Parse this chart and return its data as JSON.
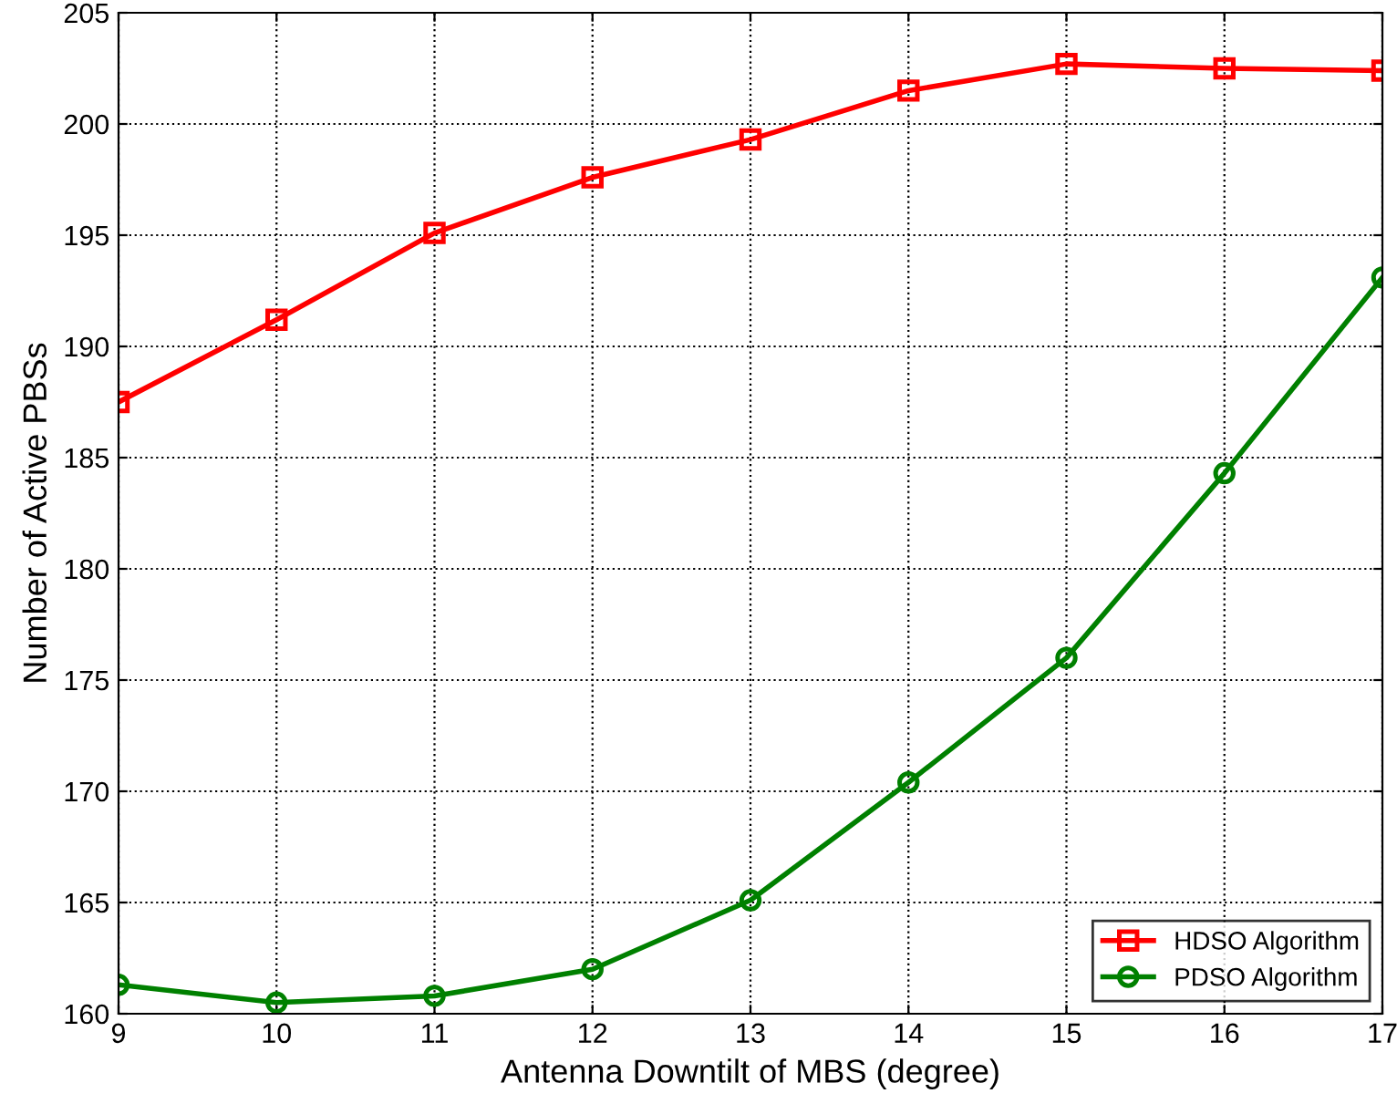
{
  "chart_data": {
    "type": "line",
    "xlabel": "Antenna Downtilt of MBS (degree)",
    "ylabel": "Number of Active PBSs",
    "x": [
      9,
      10,
      11,
      12,
      13,
      14,
      15,
      16,
      17
    ],
    "series": [
      {
        "name": "HDSO Algorithm",
        "color": "#ff0000",
        "marker": "square",
        "values": [
          187.5,
          191.2,
          195.1,
          197.6,
          199.3,
          201.5,
          202.7,
          202.5,
          202.4
        ]
      },
      {
        "name": "PDSO Algorithm",
        "color": "#008000",
        "marker": "circle",
        "values": [
          161.3,
          160.5,
          160.8,
          162.0,
          165.1,
          170.4,
          176.0,
          184.3,
          193.1
        ]
      }
    ],
    "xlim": [
      9,
      17
    ],
    "xticks": [
      9,
      10,
      11,
      12,
      13,
      14,
      15,
      16,
      17
    ],
    "ylim": [
      160,
      205
    ],
    "yticks": [
      160,
      165,
      170,
      175,
      180,
      185,
      190,
      195,
      200,
      205
    ],
    "grid": true,
    "legend": "bottom right",
    "line_style": "solid"
  }
}
